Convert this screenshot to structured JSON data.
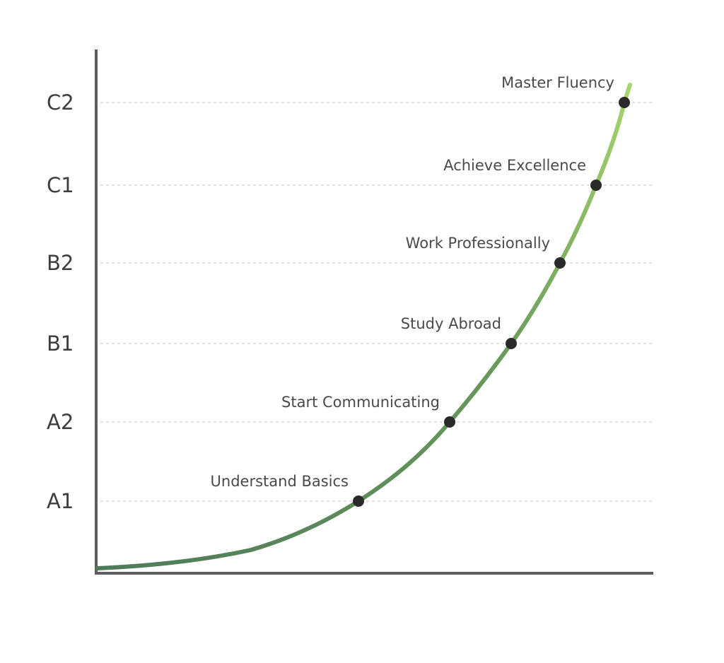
{
  "chart_data": {
    "type": "line",
    "title": "",
    "xlabel": "",
    "ylabel": "",
    "y_categories": [
      "A1",
      "A2",
      "B1",
      "B2",
      "C1",
      "C2"
    ],
    "points": [
      {
        "level": "A1",
        "label": "Understand Basics"
      },
      {
        "level": "A2",
        "label": "Start Communicating"
      },
      {
        "level": "B1",
        "label": "Study Abroad"
      },
      {
        "level": "B2",
        "label": "Work Professionally"
      },
      {
        "level": "C1",
        "label": "Achieve Excellence"
      },
      {
        "level": "C2",
        "label": "Master Fluency"
      }
    ],
    "grid": true,
    "legend": "none",
    "colors": {
      "curve_start": "#4f7a5a",
      "curve_mid": "#6a9a5c",
      "curve_end": "#a6d46e",
      "point": "#2a2a2a",
      "axis": "#5e5e5e",
      "grid": "#c4c4c4"
    }
  }
}
